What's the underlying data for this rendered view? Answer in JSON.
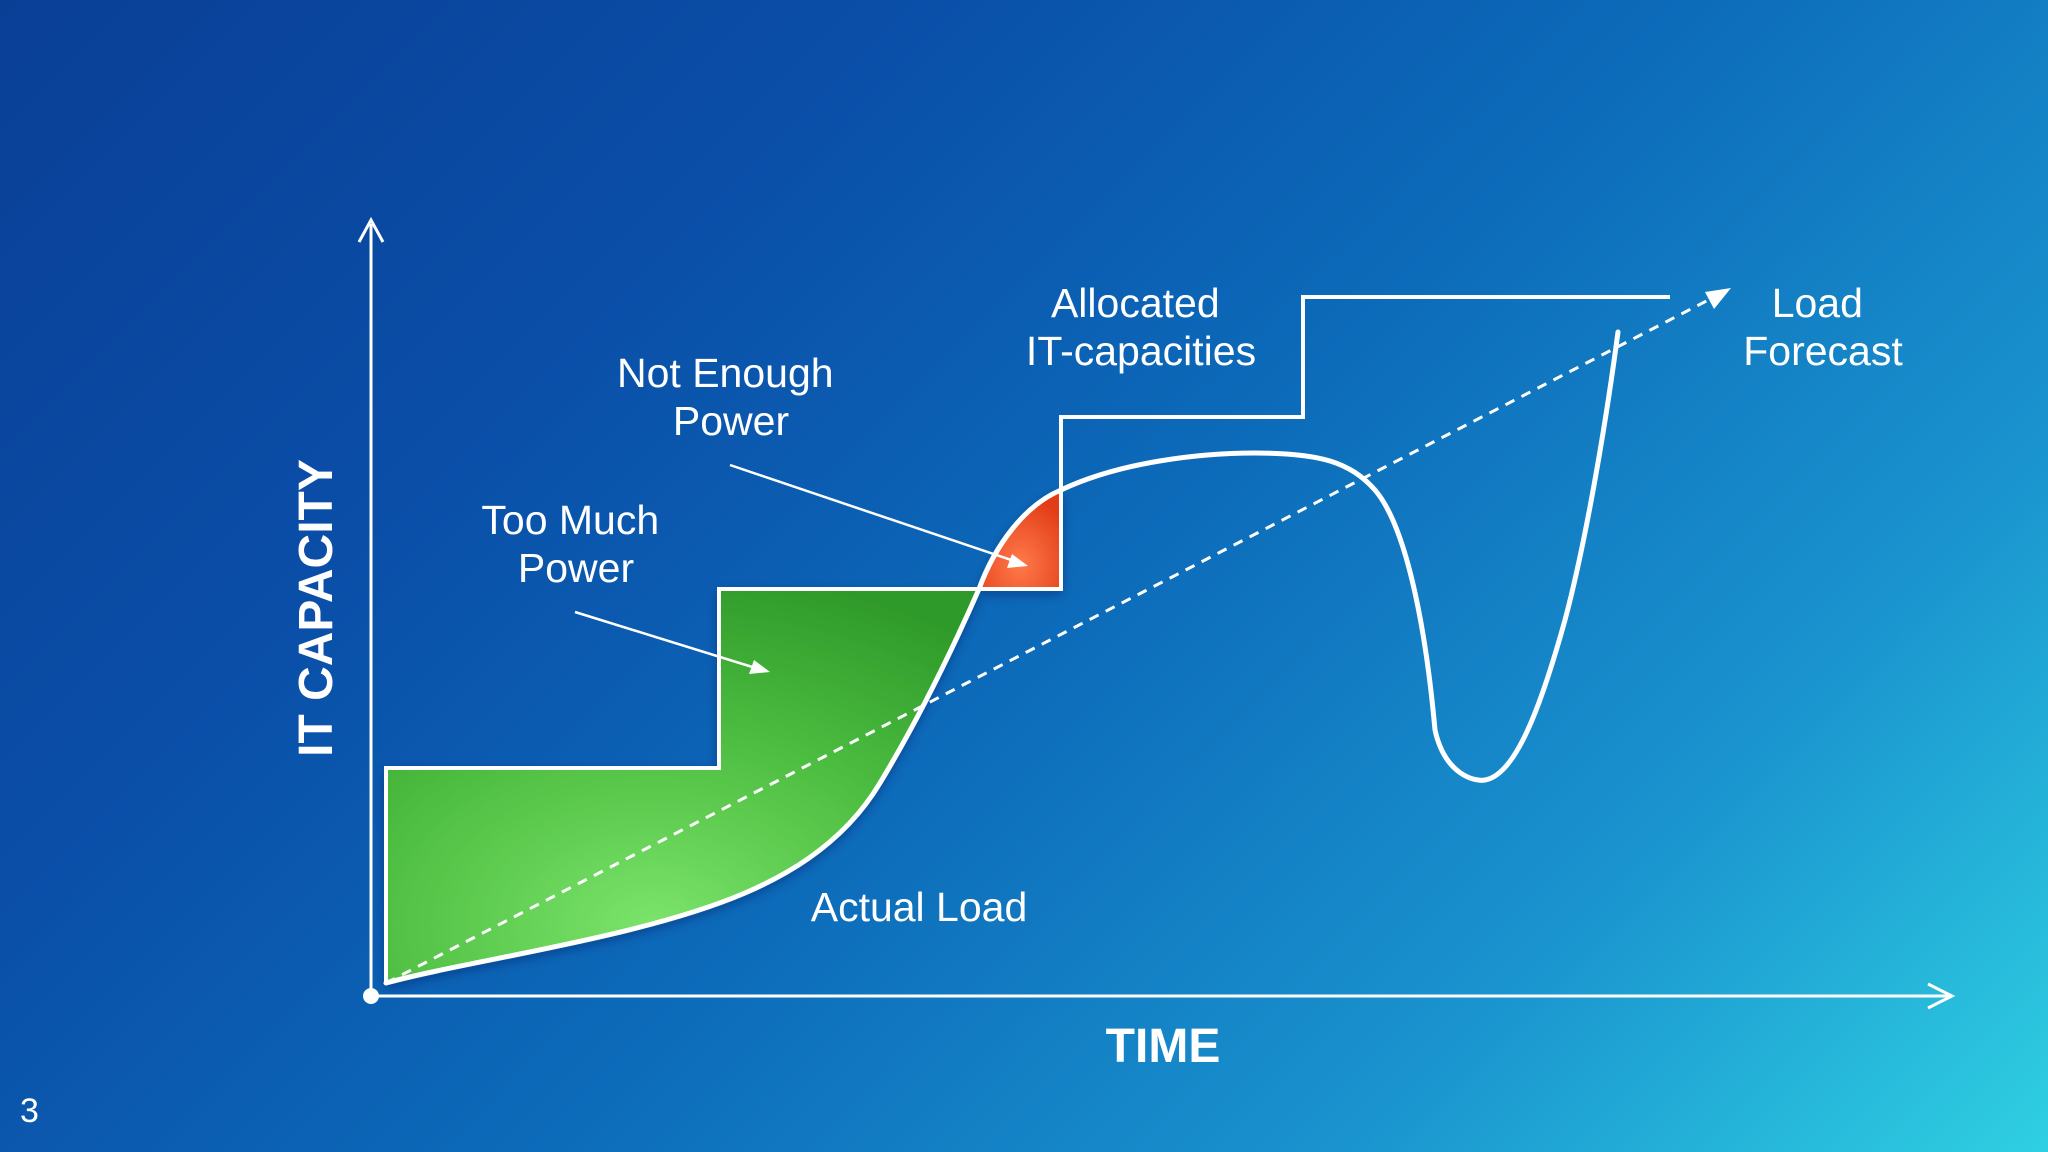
{
  "slide": {
    "number": "3"
  },
  "axes": {
    "y_label": "IT CAPACITY",
    "x_label": "TIME"
  },
  "labels": {
    "not_enough_power": [
      "Not Enough",
      "Power"
    ],
    "too_much_power": [
      "Too Much",
      "Power"
    ],
    "allocated_capacities": [
      "Allocated",
      "IT-capacities"
    ],
    "load_forecast": [
      "Load",
      "Forecast"
    ],
    "actual_load": "Actual Load"
  },
  "colors": {
    "surplus_fill": "#4fc23f",
    "deficit_fill": "#e8401c",
    "line": "#ffffff"
  }
}
